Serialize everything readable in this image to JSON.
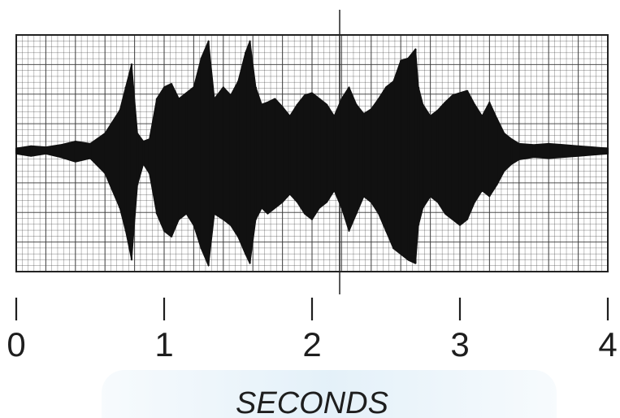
{
  "chart_data": {
    "type": "area",
    "xlabel": "SECONDS",
    "ylabel": "",
    "xlim": [
      0,
      4
    ],
    "ylim": [
      -1,
      1
    ],
    "x_ticks": [
      {
        "value": 0,
        "label": "0"
      },
      {
        "value": 1,
        "label": "1"
      },
      {
        "value": 2,
        "label": "2"
      },
      {
        "value": 3,
        "label": "3"
      },
      {
        "value": 4,
        "label": "4"
      }
    ],
    "grid": true,
    "legend": "none",
    "colors": {
      "waveform": "#111111",
      "grid": "#3a3a3a",
      "frame": "#222222",
      "background": "#ffffff"
    },
    "series": [
      {
        "x": [
          0.0,
          0.1,
          0.2,
          0.3,
          0.4,
          0.5,
          0.6,
          0.7,
          0.74,
          0.78,
          0.82,
          0.86,
          0.9,
          0.95,
          1.0,
          1.05,
          1.1,
          1.15,
          1.2,
          1.25,
          1.3,
          1.34,
          1.4,
          1.45,
          1.5,
          1.55,
          1.58,
          1.62,
          1.66,
          1.7,
          1.75,
          1.8,
          1.85,
          1.9,
          1.95,
          2.0,
          2.05,
          2.1,
          2.15,
          2.2,
          2.25,
          2.3,
          2.35,
          2.4,
          2.45,
          2.5,
          2.55,
          2.6,
          2.65,
          2.7,
          2.72,
          2.75,
          2.8,
          2.85,
          2.9,
          2.95,
          3.0,
          3.05,
          3.1,
          3.15,
          3.2,
          3.25,
          3.3,
          3.35,
          3.4,
          3.5,
          3.6,
          3.7,
          3.8,
          3.9,
          4.0
        ],
        "upper": [
          0.02,
          0.04,
          0.03,
          0.05,
          0.08,
          0.06,
          0.15,
          0.35,
          0.55,
          0.75,
          0.15,
          0.08,
          0.1,
          0.45,
          0.55,
          0.58,
          0.45,
          0.5,
          0.55,
          0.8,
          0.95,
          0.45,
          0.55,
          0.48,
          0.6,
          0.85,
          0.95,
          0.55,
          0.4,
          0.42,
          0.45,
          0.38,
          0.3,
          0.4,
          0.48,
          0.5,
          0.45,
          0.4,
          0.3,
          0.45,
          0.55,
          0.4,
          0.32,
          0.36,
          0.45,
          0.55,
          0.6,
          0.78,
          0.8,
          0.88,
          0.55,
          0.4,
          0.3,
          0.35,
          0.42,
          0.48,
          0.5,
          0.52,
          0.4,
          0.3,
          0.42,
          0.28,
          0.15,
          0.1,
          0.06,
          0.05,
          0.06,
          0.05,
          0.04,
          0.03,
          0.02
        ],
        "lower": [
          -0.03,
          -0.05,
          -0.03,
          -0.06,
          -0.1,
          -0.07,
          -0.2,
          -0.5,
          -0.7,
          -0.95,
          -0.3,
          -0.12,
          -0.2,
          -0.55,
          -0.7,
          -0.75,
          -0.6,
          -0.55,
          -0.65,
          -0.85,
          -1.0,
          -0.55,
          -0.6,
          -0.65,
          -0.75,
          -0.9,
          -0.98,
          -0.6,
          -0.5,
          -0.55,
          -0.5,
          -0.45,
          -0.38,
          -0.45,
          -0.55,
          -0.6,
          -0.5,
          -0.45,
          -0.35,
          -0.5,
          -0.7,
          -0.55,
          -0.4,
          -0.45,
          -0.55,
          -0.7,
          -0.85,
          -0.9,
          -0.95,
          -0.98,
          -0.65,
          -0.5,
          -0.4,
          -0.45,
          -0.55,
          -0.6,
          -0.65,
          -0.6,
          -0.45,
          -0.35,
          -0.4,
          -0.3,
          -0.18,
          -0.12,
          -0.08,
          -0.06,
          -0.07,
          -0.06,
          -0.05,
          -0.04,
          -0.03
        ]
      }
    ]
  }
}
